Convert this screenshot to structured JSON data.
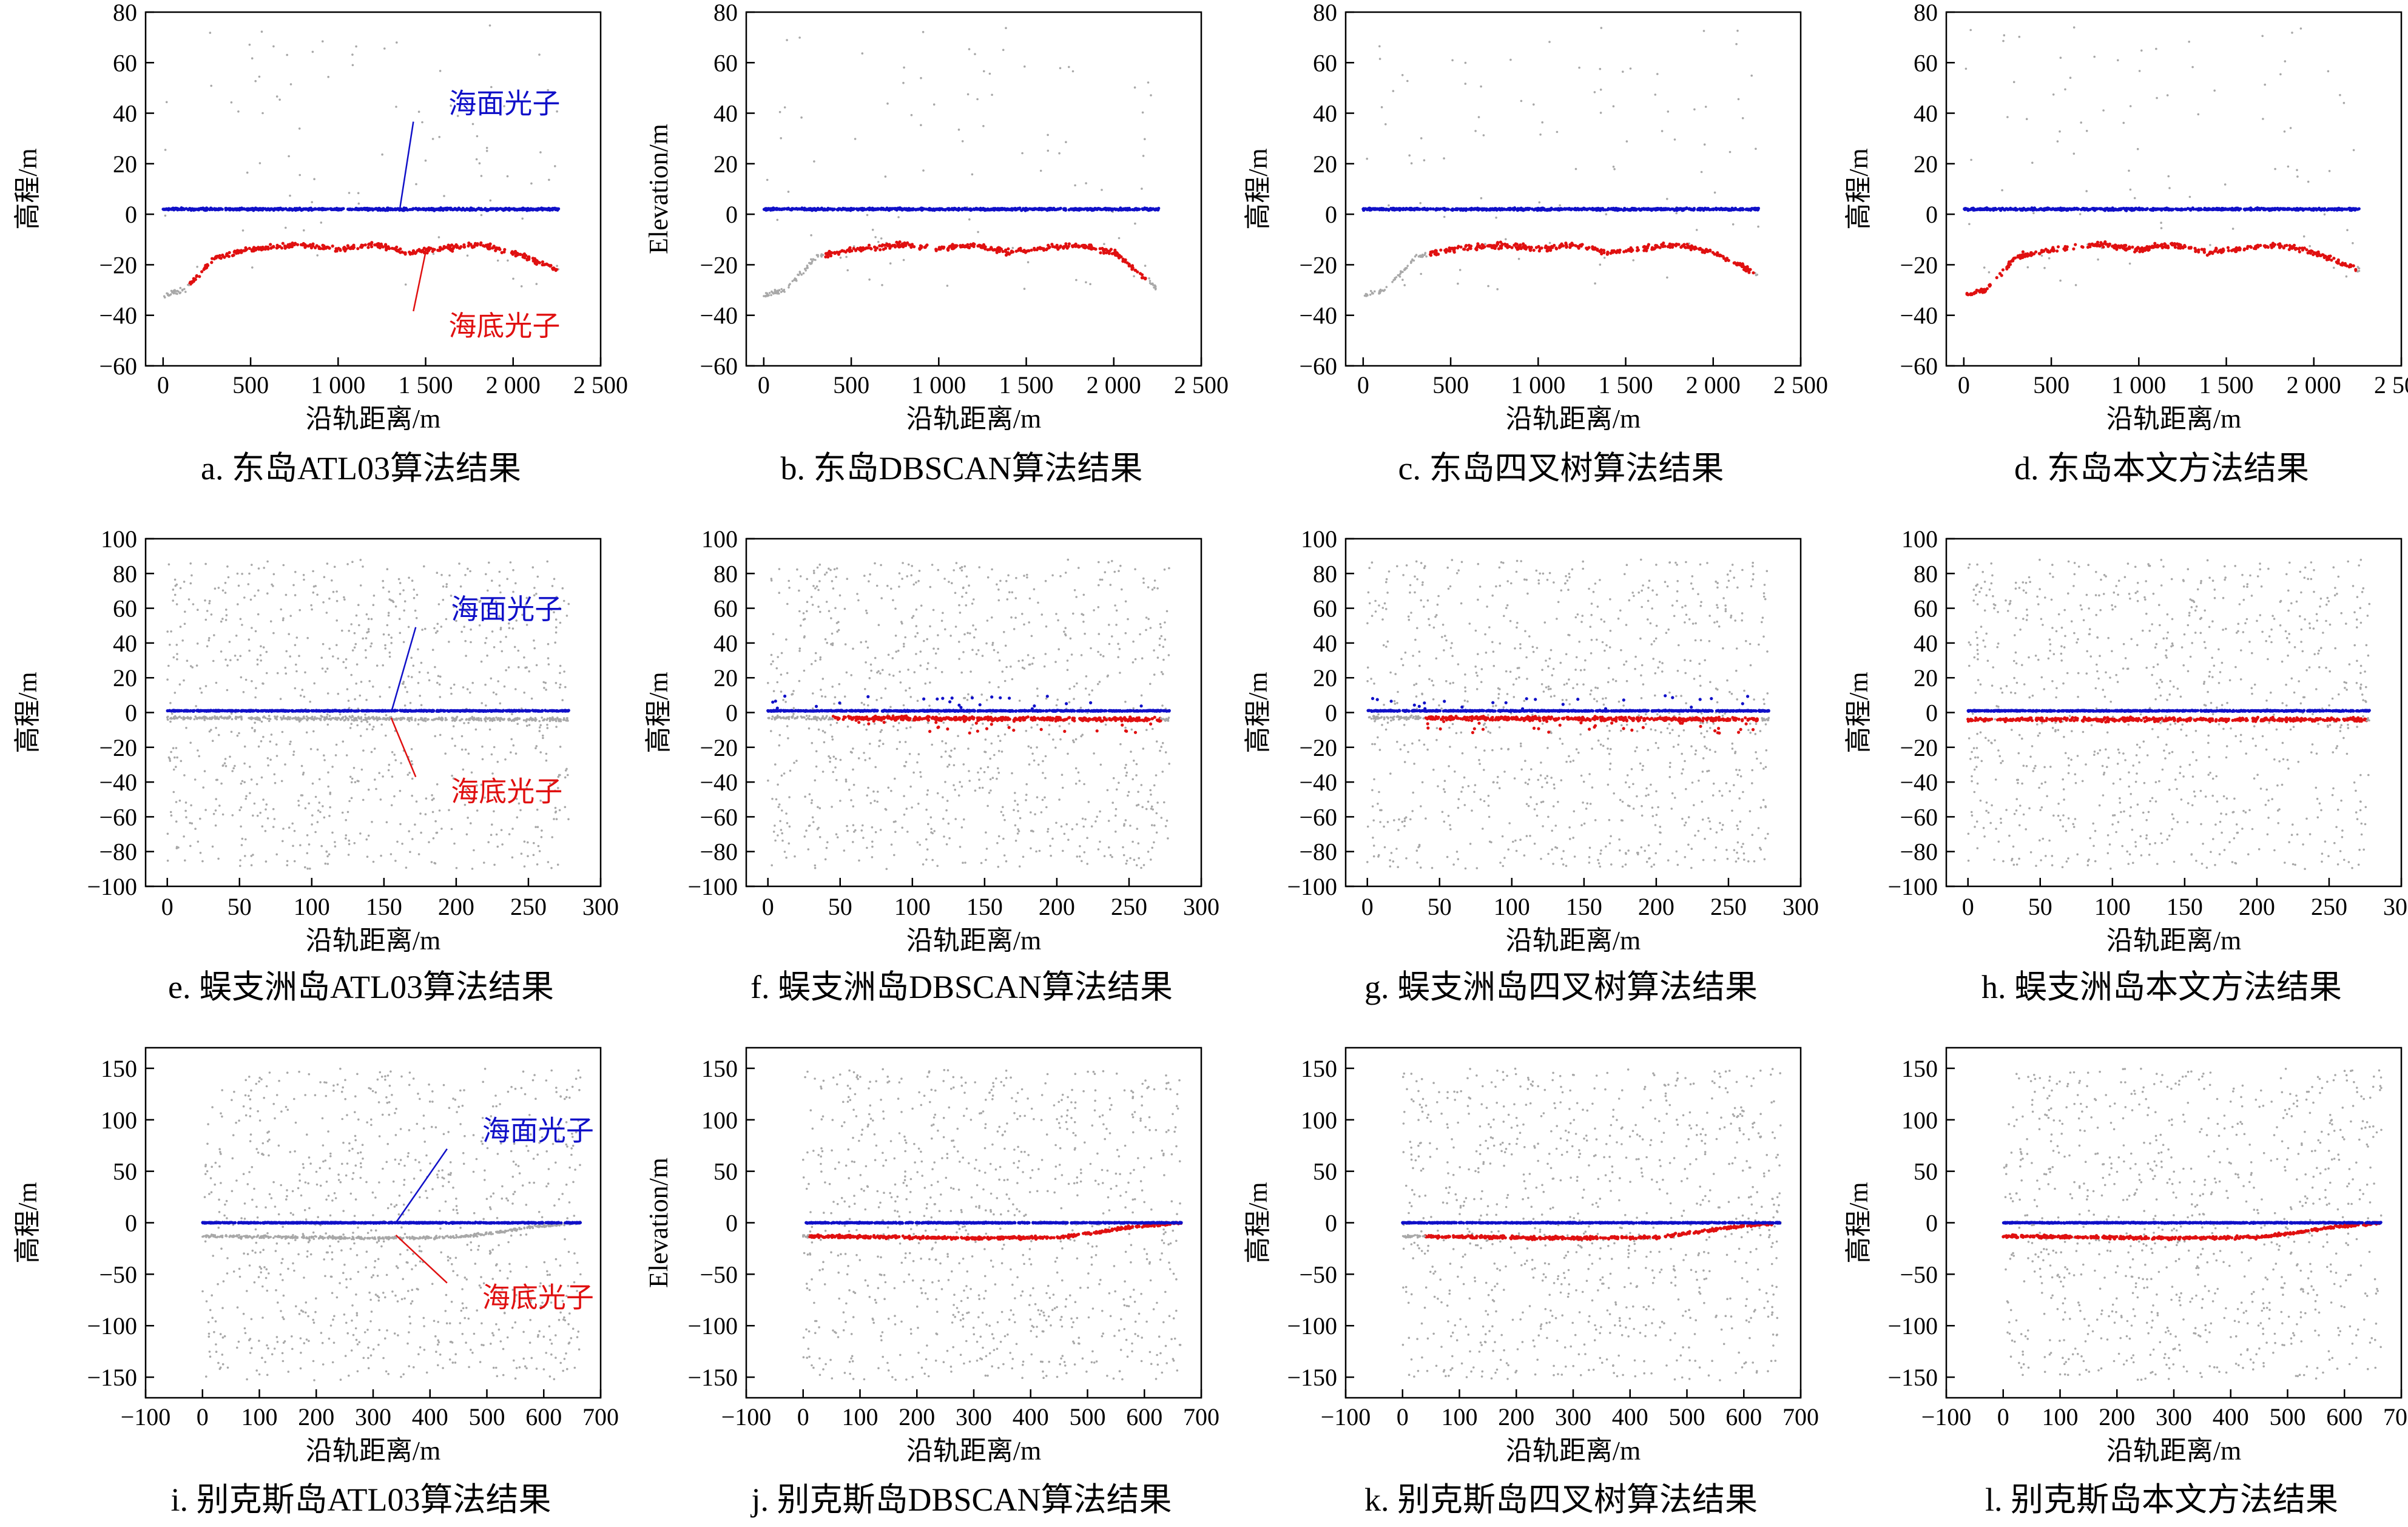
{
  "colors": {
    "sea_surface": "#1010c8",
    "sea_floor": "#e01010",
    "noise": "#a8a8a8",
    "axis": "#000000"
  },
  "chart_data": [
    {
      "type": "scatter",
      "caption": "a. 东岛ATL03算法结果",
      "xlabel": "沿轨距离/m",
      "ylabel": "高程/m",
      "xlim": [
        -100,
        2500
      ],
      "ylim": [
        -60,
        80
      ],
      "xticks": [
        0,
        500,
        1000,
        1500,
        2000,
        2500
      ],
      "xtick_labels": [
        "0",
        "500",
        "1 000",
        "1 500",
        "2 000",
        "2 500"
      ],
      "yticks": [
        -60,
        -40,
        -20,
        0,
        20,
        40,
        60,
        80
      ],
      "ytick_labels": [
        "−60",
        "−40",
        "−20",
        "0",
        "20",
        "40",
        "60",
        "80"
      ],
      "data_x_range": [
        0,
        2260
      ],
      "surface": {
        "name": "海面光子",
        "elevation": 2
      },
      "seafloor": {
        "name": "海底光子",
        "x": [
          0,
          120,
          300,
          500,
          800,
          1000,
          1200,
          1400,
          1800,
          2000,
          2260
        ],
        "y": [
          -32,
          -30,
          -17,
          -14,
          -12,
          -14,
          -12,
          -15,
          -12,
          -15,
          -22
        ],
        "classified_x_range": [
          150,
          2250
        ]
      },
      "annotations": [
        {
          "text": "海面光子",
          "series": "surface",
          "target": [
            1350,
            1
          ],
          "label_at": [
            1950,
            40
          ]
        },
        {
          "text": "海底光子",
          "series": "seafloor",
          "target": [
            1500,
            -15
          ],
          "label_at": [
            1950,
            -48
          ]
        }
      ]
    },
    {
      "type": "scatter",
      "caption": "b. 东岛DBSCAN算法结果",
      "xlabel": "沿轨距离/m",
      "ylabel": "Elevation/m",
      "xlim": [
        -100,
        2500
      ],
      "ylim": [
        -60,
        80
      ],
      "xticks": [
        0,
        500,
        1000,
        1500,
        2000,
        2500
      ],
      "xtick_labels": [
        "0",
        "500",
        "1 000",
        "1 500",
        "2 000",
        "2 500"
      ],
      "yticks": [
        -60,
        -40,
        -20,
        0,
        20,
        40,
        60,
        80
      ],
      "ytick_labels": [
        "−60",
        "−40",
        "−20",
        "0",
        "20",
        "40",
        "60",
        "80"
      ],
      "data_x_range": [
        0,
        2260
      ],
      "surface": {
        "name": "海面光子",
        "elevation": 2
      },
      "seafloor": {
        "name": "海底光子",
        "x": [
          0,
          120,
          300,
          500,
          800,
          1000,
          1200,
          1400,
          1800,
          2000,
          2260
        ],
        "y": [
          -32,
          -30,
          -17,
          -14,
          -12,
          -14,
          -12,
          -15,
          -12,
          -15,
          -30
        ],
        "classified_x_range": [
          350,
          2200
        ]
      },
      "annotations": []
    },
    {
      "type": "scatter",
      "caption": "c. 东岛四叉树算法结果",
      "xlabel": "沿轨距离/m",
      "ylabel": "高程/m",
      "xlim": [
        -100,
        2500
      ],
      "ylim": [
        -60,
        80
      ],
      "xticks": [
        0,
        500,
        1000,
        1500,
        2000,
        2500
      ],
      "xtick_labels": [
        "0",
        "500",
        "1 000",
        "1 500",
        "2 000",
        "2 500"
      ],
      "yticks": [
        -60,
        -40,
        -20,
        0,
        20,
        40,
        60,
        80
      ],
      "ytick_labels": [
        "−60",
        "−40",
        "−20",
        "0",
        "20",
        "40",
        "60",
        "80"
      ],
      "data_x_range": [
        0,
        2260
      ],
      "surface": {
        "name": "海面光子",
        "elevation": 2
      },
      "seafloor": {
        "name": "海底光子",
        "x": [
          0,
          120,
          300,
          500,
          800,
          1000,
          1200,
          1400,
          1800,
          2000,
          2260
        ],
        "y": [
          -32,
          -30,
          -17,
          -14,
          -12,
          -14,
          -12,
          -15,
          -12,
          -15,
          -24
        ],
        "classified_x_range": [
          380,
          2230
        ]
      },
      "annotations": []
    },
    {
      "type": "scatter",
      "caption": "d. 东岛本文方法结果",
      "xlabel": "沿轨距离/m",
      "ylabel": "高程/m",
      "xlim": [
        -100,
        2500
      ],
      "ylim": [
        -60,
        80
      ],
      "xticks": [
        0,
        500,
        1000,
        1500,
        2000,
        2500
      ],
      "xtick_labels": [
        "0",
        "500",
        "1 000",
        "1 500",
        "2 000",
        "2 500"
      ],
      "yticks": [
        -60,
        -40,
        -20,
        0,
        20,
        40,
        60,
        80
      ],
      "ytick_labels": [
        "−60",
        "−40",
        "−20",
        "0",
        "20",
        "40",
        "60",
        "80"
      ],
      "data_x_range": [
        0,
        2260
      ],
      "surface": {
        "name": "海面光子",
        "elevation": 2
      },
      "seafloor": {
        "name": "海底光子",
        "x": [
          0,
          120,
          300,
          500,
          800,
          1000,
          1200,
          1400,
          1800,
          2000,
          2260
        ],
        "y": [
          -32,
          -30,
          -17,
          -14,
          -12,
          -14,
          -12,
          -15,
          -12,
          -15,
          -22
        ],
        "classified_x_range": [
          0,
          2250
        ]
      },
      "annotations": []
    },
    {
      "type": "scatter",
      "caption": "e. 蜈支洲岛ATL03算法结果",
      "xlabel": "沿轨距离/m",
      "ylabel": "高程/m",
      "xlim": [
        -15,
        300
      ],
      "ylim": [
        -100,
        100
      ],
      "xticks": [
        0,
        50,
        100,
        150,
        200,
        250,
        300
      ],
      "xtick_labels": [
        "0",
        "50",
        "100",
        "150",
        "200",
        "250",
        "300"
      ],
      "yticks": [
        -100,
        -80,
        -60,
        -40,
        -20,
        0,
        20,
        40,
        60,
        80,
        100
      ],
      "ytick_labels": [
        "−100",
        "−80",
        "−60",
        "−40",
        "−20",
        "0",
        "20",
        "40",
        "60",
        "80",
        "100"
      ],
      "data_x_range": [
        0,
        278
      ],
      "surface": {
        "name": "海面光子",
        "elevation": 1
      },
      "seafloor": {
        "name": "海底光子",
        "x": [
          0,
          278
        ],
        "y": [
          -3,
          -4
        ],
        "classified_x_range": [
          0,
          0
        ]
      },
      "annotations": [
        {
          "text": "海面光子",
          "series": "surface",
          "target": [
            155,
            0
          ],
          "label_at": [
            235,
            54
          ]
        },
        {
          "text": "海底光子",
          "series": "seafloor",
          "target": [
            155,
            -3
          ],
          "label_at": [
            235,
            -51
          ]
        }
      ]
    },
    {
      "type": "scatter",
      "caption": "f. 蜈支洲岛DBSCAN算法结果",
      "xlabel": "沿轨距离/m",
      "ylabel": "高程/m",
      "xlim": [
        -15,
        300
      ],
      "ylim": [
        -100,
        100
      ],
      "xticks": [
        0,
        50,
        100,
        150,
        200,
        250,
        300
      ],
      "xtick_labels": [
        "0",
        "50",
        "100",
        "150",
        "200",
        "250",
        "300"
      ],
      "yticks": [
        -100,
        -80,
        -60,
        -40,
        -20,
        0,
        20,
        40,
        60,
        80,
        100
      ],
      "ytick_labels": [
        "−100",
        "−80",
        "−60",
        "−40",
        "−20",
        "0",
        "20",
        "40",
        "60",
        "80",
        "100"
      ],
      "data_x_range": [
        0,
        278
      ],
      "surface": {
        "name": "海面光子",
        "elevation": 1
      },
      "seafloor": {
        "name": "海底光子",
        "x": [
          0,
          278
        ],
        "y": [
          -3,
          -4
        ],
        "classified_x_range": [
          45,
          272
        ]
      },
      "annotations": []
    },
    {
      "type": "scatter",
      "caption": "g. 蜈支洲岛四叉树算法结果",
      "xlabel": "沿轨距离/m",
      "ylabel": "高程/m",
      "xlim": [
        -15,
        300
      ],
      "ylim": [
        -100,
        100
      ],
      "xticks": [
        0,
        50,
        100,
        150,
        200,
        250,
        300
      ],
      "xtick_labels": [
        "0",
        "50",
        "100",
        "150",
        "200",
        "250",
        "300"
      ],
      "yticks": [
        -100,
        -80,
        -60,
        -40,
        -20,
        0,
        20,
        40,
        60,
        80,
        100
      ],
      "ytick_labels": [
        "−100",
        "−80",
        "−60",
        "−40",
        "−20",
        "0",
        "20",
        "40",
        "60",
        "80",
        "100"
      ],
      "data_x_range": [
        0,
        278
      ],
      "surface": {
        "name": "海面光子",
        "elevation": 1
      },
      "seafloor": {
        "name": "海底光子",
        "x": [
          0,
          278
        ],
        "y": [
          -3,
          -4
        ],
        "classified_x_range": [
          40,
          272
        ]
      },
      "annotations": []
    },
    {
      "type": "scatter",
      "caption": "h. 蜈支洲岛本文方法结果",
      "xlabel": "沿轨距离/m",
      "ylabel": "高程/m",
      "xlim": [
        -15,
        300
      ],
      "ylim": [
        -100,
        100
      ],
      "xticks": [
        0,
        50,
        100,
        150,
        200,
        250,
        300
      ],
      "xtick_labels": [
        "0",
        "50",
        "100",
        "150",
        "200",
        "250",
        "300"
      ],
      "yticks": [
        -100,
        -80,
        -60,
        -40,
        -20,
        0,
        20,
        40,
        60,
        80,
        100
      ],
      "ytick_labels": [
        "−100",
        "−80",
        "−60",
        "−40",
        "−20",
        "0",
        "20",
        "40",
        "60",
        "80",
        "100"
      ],
      "data_x_range": [
        0,
        278
      ],
      "surface": {
        "name": "海面光子",
        "elevation": 1
      },
      "seafloor": {
        "name": "海底光子",
        "x": [
          0,
          278
        ],
        "y": [
          -4,
          -4
        ],
        "classified_x_range": [
          0,
          276
        ]
      },
      "annotations": []
    },
    {
      "type": "scatter",
      "caption": "i. 别克斯岛ATL03算法结果",
      "xlabel": "沿轨距离/m",
      "ylabel": "高程/m",
      "xlim": [
        -100,
        700
      ],
      "ylim": [
        -170,
        170
      ],
      "xticks": [
        -100,
        0,
        100,
        200,
        300,
        400,
        500,
        600,
        700
      ],
      "xtick_labels": [
        "−100",
        "0",
        "100",
        "200",
        "300",
        "400",
        "500",
        "600",
        "700"
      ],
      "yticks": [
        -150,
        -100,
        -50,
        0,
        50,
        100,
        150
      ],
      "ytick_labels": [
        "−150",
        "−100",
        "−50",
        "0",
        "50",
        "100",
        "150"
      ],
      "data_x_range": [
        0,
        665
      ],
      "surface": {
        "name": "海面光子",
        "elevation": 0
      },
      "seafloor": {
        "name": "海底光子",
        "x": [
          0,
          300,
          450,
          520,
          580,
          665
        ],
        "y": [
          -13,
          -15,
          -14,
          -9,
          -4,
          0
        ],
        "classified_x_range": [
          0,
          0
        ]
      },
      "annotations": [
        {
          "text": "海面光子",
          "series": "surface",
          "target": [
            340,
            0
          ],
          "label_at": [
            590,
            80
          ]
        },
        {
          "text": "海底光子",
          "series": "seafloor",
          "target": [
            340,
            -12
          ],
          "label_at": [
            590,
            -82
          ]
        }
      ]
    },
    {
      "type": "scatter",
      "caption": "j. 别克斯岛DBSCAN算法结果",
      "xlabel": "沿轨距离/m",
      "ylabel": "Elevation/m",
      "xlim": [
        -100,
        700
      ],
      "ylim": [
        -170,
        170
      ],
      "xticks": [
        -100,
        0,
        100,
        200,
        300,
        400,
        500,
        600,
        700
      ],
      "xtick_labels": [
        "−100",
        "0",
        "100",
        "200",
        "300",
        "400",
        "500",
        "600",
        "700"
      ],
      "yticks": [
        -150,
        -100,
        -50,
        0,
        50,
        100,
        150
      ],
      "ytick_labels": [
        "−150",
        "−100",
        "−50",
        "0",
        "50",
        "100",
        "150"
      ],
      "data_x_range": [
        0,
        665
      ],
      "surface": {
        "name": "海面光子",
        "elevation": 0
      },
      "seafloor": {
        "name": "海底光子",
        "x": [
          0,
          300,
          450,
          520,
          580,
          665
        ],
        "y": [
          -13,
          -15,
          -14,
          -9,
          -4,
          0
        ],
        "classified_x_range": [
          10,
          665
        ]
      },
      "annotations": []
    },
    {
      "type": "scatter",
      "caption": "k. 别克斯岛四叉树算法结果",
      "xlabel": "沿轨距离/m",
      "ylabel": "高程/m",
      "xlim": [
        -100,
        700
      ],
      "ylim": [
        -170,
        170
      ],
      "xticks": [
        -100,
        0,
        100,
        200,
        300,
        400,
        500,
        600,
        700
      ],
      "xtick_labels": [
        "−100",
        "0",
        "100",
        "200",
        "300",
        "400",
        "500",
        "600",
        "700"
      ],
      "yticks": [
        -150,
        -100,
        -50,
        0,
        50,
        100,
        150
      ],
      "ytick_labels": [
        "−150",
        "−100",
        "−50",
        "0",
        "50",
        "100",
        "150"
      ],
      "data_x_range": [
        0,
        665
      ],
      "surface": {
        "name": "海面光子",
        "elevation": 0
      },
      "seafloor": {
        "name": "海底光子",
        "x": [
          0,
          300,
          450,
          520,
          580,
          665
        ],
        "y": [
          -13,
          -15,
          -14,
          -9,
          -4,
          0
        ],
        "classified_x_range": [
          40,
          650
        ]
      },
      "annotations": []
    },
    {
      "type": "scatter",
      "caption": "l. 别克斯岛本文方法结果",
      "xlabel": "沿轨距离/m",
      "ylabel": "高程/m",
      "xlim": [
        -100,
        700
      ],
      "ylim": [
        -170,
        170
      ],
      "xticks": [
        -100,
        0,
        100,
        200,
        300,
        400,
        500,
        600,
        700
      ],
      "xtick_labels": [
        "−100",
        "0",
        "100",
        "200",
        "300",
        "400",
        "500",
        "600",
        "700"
      ],
      "yticks": [
        -150,
        -100,
        -50,
        0,
        50,
        100,
        150
      ],
      "ytick_labels": [
        "−150",
        "−100",
        "−50",
        "0",
        "50",
        "100",
        "150"
      ],
      "data_x_range": [
        0,
        665
      ],
      "surface": {
        "name": "海面光子",
        "elevation": 0
      },
      "seafloor": {
        "name": "海底光子",
        "x": [
          0,
          300,
          450,
          520,
          580,
          665
        ],
        "y": [
          -13,
          -15,
          -14,
          -9,
          -4,
          0
        ],
        "classified_x_range": [
          0,
          665
        ]
      },
      "annotations": []
    }
  ]
}
